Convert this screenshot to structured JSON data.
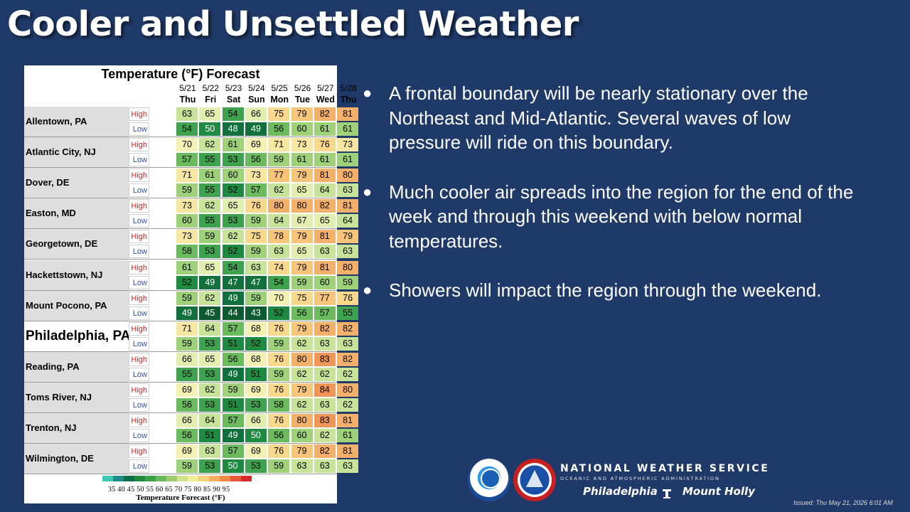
{
  "title": "Cooler and Unsettled Weather",
  "table": {
    "title": "Temperature (°F) Forecast",
    "high_label": "High",
    "low_label": "Low",
    "days": [
      {
        "date": "5/21",
        "dow": "Thu"
      },
      {
        "date": "5/22",
        "dow": "Fri"
      },
      {
        "date": "5/23",
        "dow": "Sat"
      },
      {
        "date": "5/24",
        "dow": "Sun"
      },
      {
        "date": "5/25",
        "dow": "Mon"
      },
      {
        "date": "5/26",
        "dow": "Tue"
      },
      {
        "date": "5/27",
        "dow": "Wed"
      },
      {
        "date": "5/28",
        "dow": "Thu"
      }
    ],
    "stations": [
      {
        "name": "Allentown, PA",
        "high": [
          63,
          65,
          54,
          66,
          75,
          79,
          82,
          81
        ],
        "low": [
          54,
          50,
          48,
          49,
          56,
          60,
          61,
          61
        ]
      },
      {
        "name": "Atlantic City, NJ",
        "high": [
          70,
          62,
          61,
          69,
          71,
          73,
          76,
          73
        ],
        "low": [
          57,
          55,
          53,
          56,
          59,
          61,
          61,
          61
        ]
      },
      {
        "name": "Dover, DE",
        "high": [
          71,
          61,
          60,
          73,
          77,
          79,
          81,
          80
        ],
        "low": [
          59,
          55,
          52,
          57,
          62,
          65,
          64,
          63
        ]
      },
      {
        "name": "Easton, MD",
        "high": [
          73,
          62,
          65,
          76,
          80,
          80,
          82,
          81
        ],
        "low": [
          60,
          55,
          53,
          59,
          64,
          67,
          65,
          64
        ]
      },
      {
        "name": "Georgetown, DE",
        "high": [
          73,
          59,
          62,
          75,
          78,
          79,
          81,
          79
        ],
        "low": [
          58,
          53,
          52,
          59,
          63,
          65,
          63,
          63
        ]
      },
      {
        "name": "Hackettstown, NJ",
        "high": [
          61,
          65,
          54,
          63,
          74,
          79,
          81,
          80
        ],
        "low": [
          52,
          49,
          47,
          47,
          54,
          59,
          60,
          59
        ]
      },
      {
        "name": "Mount Pocono, PA",
        "high": [
          59,
          62,
          49,
          59,
          70,
          75,
          77,
          76
        ],
        "low": [
          49,
          45,
          44,
          43,
          52,
          56,
          57,
          55
        ]
      },
      {
        "name": "Philadelphia, PA",
        "big": true,
        "high": [
          71,
          64,
          57,
          68,
          76,
          79,
          82,
          82
        ],
        "low": [
          59,
          53,
          51,
          52,
          59,
          62,
          63,
          63
        ]
      },
      {
        "name": "Reading, PA",
        "high": [
          66,
          65,
          56,
          68,
          76,
          80,
          83,
          82
        ],
        "low": [
          55,
          53,
          49,
          51,
          59,
          62,
          62,
          62
        ]
      },
      {
        "name": "Toms River, NJ",
        "high": [
          69,
          62,
          59,
          69,
          76,
          79,
          84,
          80
        ],
        "low": [
          56,
          53,
          51,
          53,
          58,
          62,
          63,
          62
        ]
      },
      {
        "name": "Trenton, NJ",
        "high": [
          66,
          64,
          57,
          66,
          76,
          80,
          83,
          81
        ],
        "low": [
          56,
          51,
          49,
          50,
          56,
          60,
          62,
          61
        ]
      },
      {
        "name": "Wilmington, DE",
        "high": [
          69,
          63,
          57,
          69,
          76,
          79,
          82,
          81
        ],
        "low": [
          59,
          53,
          50,
          53,
          59,
          63,
          63,
          63
        ]
      }
    ],
    "legend": {
      "labels": "35 40 45 50 55 60 65 70 75 80 85 90 95",
      "title": "Temperature Forecast (°F)",
      "colors": [
        "#3cc8b4",
        "#1a8c8c",
        "#0f6e46",
        "#1e8c3c",
        "#3ca04a",
        "#6ab85a",
        "#9ccc6e",
        "#cfe28c",
        "#f2ee96",
        "#f8d27a",
        "#f4b05e",
        "#ef8a48",
        "#e8583a",
        "#d82828"
      ]
    }
  },
  "bullets": [
    "A frontal boundary will be nearly stationary over the Northeast and Mid-Atlantic. Several waves of low pressure will ride on this boundary.",
    "Much cooler air spreads into the region for the end of the week and through this weekend with below normal temperatures.",
    "Showers will impact the region through the weekend."
  ],
  "footer": {
    "agency": "NATIONAL WEATHER SERVICE",
    "sub_agency": "OCEANIC AND ATMOSPHERIC ADMINISTRATION",
    "office_left": "Philadelphia",
    "office_right": "Mount Holly",
    "issued": "Issued: Thu May 21, 2026 6:01 AM"
  }
}
